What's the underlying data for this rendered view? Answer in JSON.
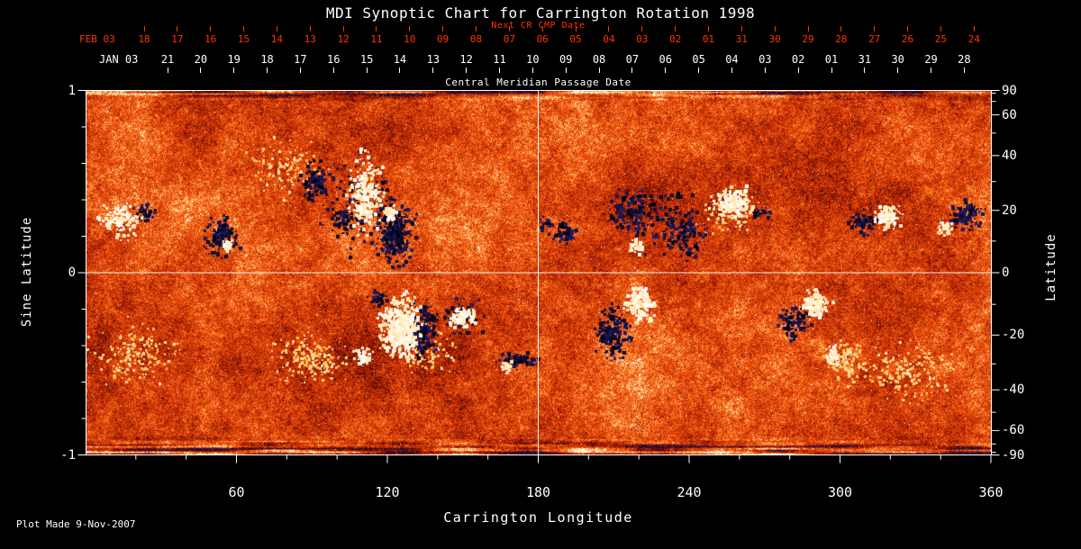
{
  "title": "MDI Synoptic Chart for Carrington Rotation 1998",
  "top_axis": {
    "next_cr_label": "Next CR CMP Date",
    "feb_row": {
      "month_label": "FEB 03",
      "days": [
        "18",
        "17",
        "16",
        "15",
        "14",
        "13",
        "12",
        "11",
        "10",
        "09",
        "08",
        "07",
        "06",
        "05",
        "04",
        "03",
        "02",
        "01",
        "31",
        "30",
        "29",
        "28",
        "27",
        "26",
        "25",
        "24"
      ]
    },
    "jan_row": {
      "month_label": "JAN 03",
      "days": [
        "21",
        "20",
        "19",
        "18",
        "17",
        "16",
        "15",
        "14",
        "13",
        "12",
        "11",
        "10",
        "09",
        "08",
        "07",
        "06",
        "05",
        "04",
        "03",
        "02",
        "01",
        "31",
        "30",
        "29",
        "28"
      ]
    },
    "cmp_axis_title": "Central Meridian Passage Date"
  },
  "axes": {
    "left": {
      "label": "Sine Latitude",
      "tick_labels": [
        "1",
        "0",
        "-1"
      ],
      "tick_values": [
        1,
        0,
        -1
      ]
    },
    "right": {
      "label": "Latitude",
      "tick_values": [
        90,
        60,
        40,
        20,
        0,
        -20,
        -40,
        -60,
        -90
      ]
    },
    "bottom": {
      "label": "Carrington Longitude",
      "tick_values": [
        60,
        120,
        180,
        240,
        300,
        360
      ]
    }
  },
  "footer": {
    "plot_made": "Plot Made  9-Nov-2007"
  },
  "colors": {
    "background": "#000000",
    "frame": "#ffffff",
    "text": "#ffffff",
    "date_red": "#ff3400",
    "quiet_sun_orange": "#dd4708",
    "positive_polarity": "#ffffff",
    "negative_polarity": "#101040"
  },
  "chart_data": {
    "type": "heatmap",
    "title": "MDI Synoptic Chart for Carrington Rotation 1998",
    "description": "Full-sun synoptic magnetogram for Carrington rotation 1998. Quiet sun is granular orange-red noise; white/yellow speckled patches are positive magnetic polarity active regions; dark navy/black patches are negative polarity. White gridlines at 180 deg longitude and sine-latitude 0. Polar edges show horizontal bright/dark streaking.",
    "xlabel": "Carrington Longitude",
    "ylabel_left": "Sine Latitude",
    "ylabel_right": "Latitude",
    "x_range": [
      0,
      360
    ],
    "y_range": [
      -1,
      1
    ],
    "gridlines": {
      "x": [
        180
      ],
      "y": [
        0
      ]
    },
    "active_regions": [
      {
        "lon": 20,
        "slat": -0.45,
        "rlon": 18,
        "rslat": 0.17,
        "pol": "bright",
        "density": 0.15
      },
      {
        "lon": 80,
        "slat": 0.58,
        "rlon": 16,
        "rslat": 0.15,
        "pol": "bright",
        "density": 0.13
      },
      {
        "lon": 325,
        "slat": -0.55,
        "rlon": 20,
        "rslat": 0.15,
        "pol": "bright",
        "density": 0.16
      },
      {
        "lon": 88,
        "slat": -0.48,
        "rlon": 15,
        "rslat": 0.14,
        "pol": "bright",
        "density": 0.25
      },
      {
        "lon": 135,
        "slat": -0.45,
        "rlon": 12,
        "rslat": 0.12,
        "pol": "bright",
        "density": 0.15
      },
      {
        "lon": 302,
        "slat": -0.48,
        "rlon": 8,
        "rslat": 0.1,
        "pol": "bright",
        "density": 0.5
      },
      {
        "lon": 255,
        "slat": 0.3,
        "rlon": 12,
        "rslat": 0.12,
        "pol": "bright",
        "density": 0.12
      },
      {
        "lon": 108,
        "slat": 0.35,
        "rlon": 16,
        "rslat": 0.25,
        "pol": "dark",
        "density": 0.08
      },
      {
        "lon": 228,
        "slat": 0.3,
        "rlon": 14,
        "rslat": 0.2,
        "pol": "dark",
        "density": 0.07
      },
      {
        "lon": 23,
        "slat": 0.33,
        "rlon": 4,
        "rslat": 0.05,
        "pol": "dark",
        "density": 0.5
      },
      {
        "lon": 54,
        "slat": 0.2,
        "rlon": 7,
        "rslat": 0.1,
        "pol": "dark",
        "density": 0.55
      },
      {
        "lon": 91,
        "slat": 0.5,
        "rlon": 6,
        "rslat": 0.1,
        "pol": "dark",
        "density": 0.45
      },
      {
        "lon": 102,
        "slat": 0.28,
        "rlon": 4,
        "rslat": 0.06,
        "pol": "dark",
        "density": 0.4
      },
      {
        "lon": 123,
        "slat": 0.22,
        "rlon": 8,
        "rslat": 0.17,
        "pol": "dark",
        "density": 0.55
      },
      {
        "lon": 134,
        "slat": -0.31,
        "rlon": 6.5,
        "rslat": 0.15,
        "pol": "dark",
        "density": 0.55
      },
      {
        "lon": 150,
        "slat": -0.24,
        "rlon": 8,
        "rslat": 0.1,
        "pol": "dark",
        "density": 0.22
      },
      {
        "lon": 116,
        "slat": -0.14,
        "rlon": 4,
        "rslat": 0.05,
        "pol": "dark",
        "density": 0.5
      },
      {
        "lon": 183,
        "slat": 0.27,
        "rlon": 2.5,
        "rslat": 0.04,
        "pol": "dark",
        "density": 0.5
      },
      {
        "lon": 190,
        "slat": 0.22,
        "rlon": 5,
        "rslat": 0.06,
        "pol": "dark",
        "density": 0.6
      },
      {
        "lon": 217,
        "slat": 0.33,
        "rlon": 9,
        "rslat": 0.13,
        "pol": "dark",
        "density": 0.32
      },
      {
        "lon": 238,
        "slat": 0.21,
        "rlon": 8,
        "rslat": 0.12,
        "pol": "dark",
        "density": 0.32
      },
      {
        "lon": 209,
        "slat": -0.32,
        "rlon": 7,
        "rslat": 0.14,
        "pol": "dark",
        "density": 0.5
      },
      {
        "lon": 268,
        "slat": 0.33,
        "rlon": 4,
        "rslat": 0.05,
        "pol": "dark",
        "density": 0.3
      },
      {
        "lon": 282,
        "slat": -0.27,
        "rlon": 6,
        "rslat": 0.085,
        "pol": "dark",
        "density": 0.5
      },
      {
        "lon": 309,
        "slat": 0.27,
        "rlon": 5,
        "rslat": 0.07,
        "pol": "dark",
        "density": 0.5
      },
      {
        "lon": 350,
        "slat": 0.32,
        "rlon": 7,
        "rslat": 0.09,
        "pol": "dark",
        "density": 0.45
      },
      {
        "lon": 172,
        "slat": -0.48,
        "rlon": 10,
        "rslat": 0.05,
        "pol": "dark",
        "density": 0.4
      },
      {
        "lon": 14,
        "slat": 0.28,
        "rlon": 9,
        "rslat": 0.09,
        "pol": "white",
        "density": 0.45
      },
      {
        "lon": 56,
        "slat": 0.16,
        "rlon": 2.5,
        "rslat": 0.035,
        "pol": "white",
        "density": 0.9
      },
      {
        "lon": 111,
        "slat": 0.43,
        "rlon": 6.5,
        "rslat": 0.22,
        "pol": "white",
        "density": 0.5
      },
      {
        "lon": 121,
        "slat": 0.32,
        "rlon": 3,
        "rslat": 0.05,
        "pol": "white",
        "density": 0.8
      },
      {
        "lon": 125,
        "slat": -0.29,
        "rlon": 8,
        "rslat": 0.16,
        "pol": "white",
        "density": 1.1
      },
      {
        "lon": 150,
        "slat": -0.24,
        "rlon": 5,
        "rslat": 0.06,
        "pol": "white",
        "density": 0.9
      },
      {
        "lon": 110,
        "slat": -0.46,
        "rlon": 4,
        "rslat": 0.05,
        "pol": "white",
        "density": 0.6
      },
      {
        "lon": 219,
        "slat": 0.15,
        "rlon": 3,
        "rslat": 0.045,
        "pol": "white",
        "density": 0.7
      },
      {
        "lon": 220,
        "slat": -0.17,
        "rlon": 5.7,
        "rslat": 0.1,
        "pol": "white",
        "density": 0.9
      },
      {
        "lon": 257,
        "slat": 0.38,
        "rlon": 8,
        "rslat": 0.09,
        "pol": "white",
        "density": 0.8
      },
      {
        "lon": 290,
        "slat": -0.17,
        "rlon": 6,
        "rslat": 0.08,
        "pol": "white",
        "density": 0.8
      },
      {
        "lon": 319,
        "slat": 0.31,
        "rlon": 5,
        "rslat": 0.07,
        "pol": "white",
        "density": 0.85
      },
      {
        "lon": 341,
        "slat": 0.25,
        "rlon": 3,
        "rslat": 0.05,
        "pol": "white",
        "density": 0.5
      },
      {
        "lon": 297,
        "slat": -0.45,
        "rlon": 3,
        "rslat": 0.05,
        "pol": "white",
        "density": 0.7
      },
      {
        "lon": 167,
        "slat": -0.52,
        "rlon": 3,
        "rslat": 0.04,
        "pol": "white",
        "density": 0.6
      }
    ]
  }
}
